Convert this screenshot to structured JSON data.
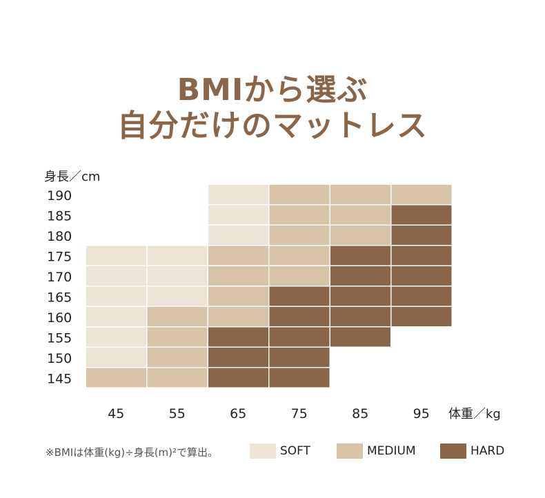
{
  "header": {
    "title_line1": "BMIから選ぶ",
    "title_line2": "自分だけのマットレス"
  },
  "footnote": "※BMIは体重(kg)÷身長(m)²で算出。",
  "colors": {
    "SOFT": "#ede4d8",
    "MEDIUM": "#d8c3a7",
    "HARD": "#8b6547"
  },
  "legend": [
    {
      "key": "SOFT",
      "label": "SOFT"
    },
    {
      "key": "MEDIUM",
      "label": "MEDIUM"
    },
    {
      "key": "HARD",
      "label": "HARD"
    }
  ],
  "chart_data": {
    "type": "heatmap",
    "xlabel": "体重／kg",
    "ylabel": "身長／cm",
    "x": [
      "45",
      "55",
      "65",
      "75",
      "85",
      "95"
    ],
    "y": [
      "190",
      "185",
      "180",
      "175",
      "170",
      "165",
      "160",
      "155",
      "150",
      "145"
    ],
    "cells": [
      [
        null,
        null,
        "SOFT",
        "MEDIUM",
        "MEDIUM",
        "MEDIUM"
      ],
      [
        null,
        null,
        "SOFT",
        "MEDIUM",
        "MEDIUM",
        "HARD"
      ],
      [
        null,
        null,
        "SOFT",
        "MEDIUM",
        "MEDIUM",
        "HARD"
      ],
      [
        "SOFT",
        "SOFT",
        "MEDIUM",
        "MEDIUM",
        "HARD",
        "HARD"
      ],
      [
        "SOFT",
        "SOFT",
        "MEDIUM",
        "MEDIUM",
        "HARD",
        "HARD"
      ],
      [
        "SOFT",
        "SOFT",
        "MEDIUM",
        "HARD",
        "HARD",
        "HARD"
      ],
      [
        "SOFT",
        "MEDIUM",
        "MEDIUM",
        "HARD",
        "HARD",
        "HARD"
      ],
      [
        "SOFT",
        "MEDIUM",
        "HARD",
        "HARD",
        "HARD",
        null
      ],
      [
        "SOFT",
        "MEDIUM",
        "HARD",
        "HARD",
        null,
        null
      ],
      [
        "MEDIUM",
        "MEDIUM",
        "HARD",
        "HARD",
        null,
        null
      ]
    ],
    "legend_position": "bottom",
    "grid": false
  }
}
